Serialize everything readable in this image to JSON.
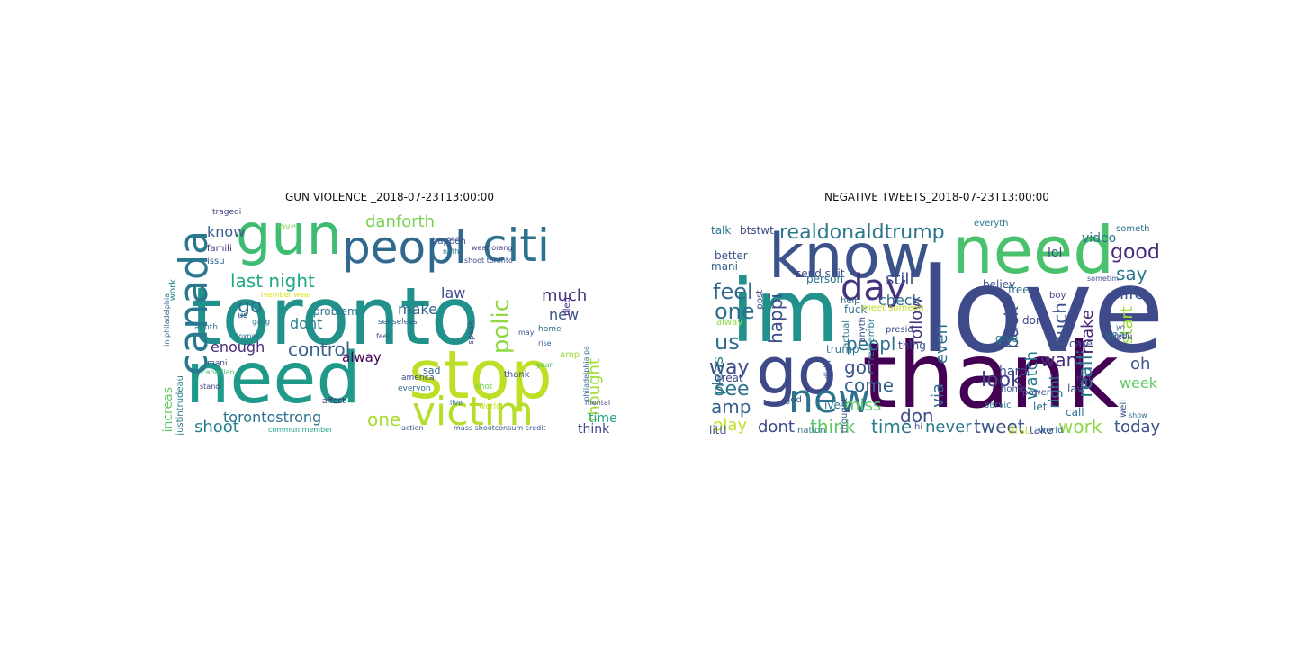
{
  "figure": {
    "panels": [
      {
        "title": "GUN VIOLENCE _2018-07-23T13:00:00",
        "words": [
          {
            "text": "toronto",
            "color": "#21918c"
          },
          {
            "text": "need",
            "color": "#1f9a8a"
          },
          {
            "text": "stop",
            "color": "#bddf26"
          },
          {
            "text": "peopl",
            "color": "#31688e"
          },
          {
            "text": "gun",
            "color": "#3fbc73"
          },
          {
            "text": "citi",
            "color": "#2c728e"
          },
          {
            "text": "victim",
            "color": "#b5de2b"
          },
          {
            "text": "canada",
            "color": "#2a788e"
          },
          {
            "text": "last night",
            "color": "#22a884"
          },
          {
            "text": "danforth",
            "color": "#7ad151"
          },
          {
            "text": "control",
            "color": "#355f8d"
          },
          {
            "text": "torontostrong",
            "color": "#2c728e"
          },
          {
            "text": "shoot",
            "color": "#25838e"
          },
          {
            "text": "one",
            "color": "#addc30"
          },
          {
            "text": "enough",
            "color": "#482878"
          },
          {
            "text": "much",
            "color": "#46337f"
          },
          {
            "text": "polic",
            "color": "#8fd744"
          },
          {
            "text": "thought",
            "color": "#a2da37"
          },
          {
            "text": "law",
            "color": "#3e4a89"
          },
          {
            "text": "make",
            "color": "#33638d"
          },
          {
            "text": "go",
            "color": "#2d708e"
          },
          {
            "text": "dont",
            "color": "#26828e"
          },
          {
            "text": "alway",
            "color": "#440154"
          },
          {
            "text": "know",
            "color": "#375a8c"
          },
          {
            "text": "increas",
            "color": "#5ec962"
          },
          {
            "text": "new",
            "color": "#3b528b"
          },
          {
            "text": "time",
            "color": "#20a386"
          },
          {
            "text": "think",
            "color": "#404688"
          },
          {
            "text": "famili",
            "color": "#472d7b"
          },
          {
            "text": "issu",
            "color": "#31688e"
          },
          {
            "text": "problem",
            "color": "#2a788e"
          },
          {
            "text": "happen",
            "color": "#3b528b"
          },
          {
            "text": "justintrudeau",
            "color": "#287c8e"
          },
          {
            "text": "tragedi",
            "color": "#414487"
          },
          {
            "text": "love",
            "color": "#7ad151"
          },
          {
            "text": "illeg",
            "color": "#472c7a"
          },
          {
            "text": "senseless",
            "color": "#355f8d"
          },
          {
            "text": "speak",
            "color": "#3e4989"
          },
          {
            "text": "sad",
            "color": "#31688e"
          },
          {
            "text": "amp",
            "color": "#a0da39"
          },
          {
            "text": "home",
            "color": "#2e6f8e"
          },
          {
            "text": "shot",
            "color": "#75d054"
          },
          {
            "text": "thank",
            "color": "#3b528b"
          },
          {
            "text": "us",
            "color": "#32648e"
          },
          {
            "text": "anoth",
            "color": "#2a788e"
          },
          {
            "text": "mani",
            "color": "#3f4788"
          },
          {
            "text": "work",
            "color": "#238a8d"
          },
          {
            "text": "wear orang",
            "color": "#453781"
          },
          {
            "text": "shoot toronto",
            "color": "#3e4a89"
          },
          {
            "text": "philadelphia pa",
            "color": "#2d708e"
          },
          {
            "text": "in philadelphia",
            "color": "#31688e"
          },
          {
            "text": "member wear",
            "color": "#dde318"
          },
          {
            "text": "commun member",
            "color": "#1fa088"
          },
          {
            "text": "mass shootconsum credit",
            "color": "#38588c"
          },
          {
            "text": "world",
            "color": "#c2df23"
          },
          {
            "text": "america",
            "color": "#3f4788"
          },
          {
            "text": "everyon",
            "color": "#2c728e"
          },
          {
            "text": "affect",
            "color": "#481f70"
          },
          {
            "text": "action",
            "color": "#3b528b"
          },
          {
            "text": "toxnes",
            "color": "#2d708e"
          },
          {
            "text": "gang",
            "color": "#2a788e"
          },
          {
            "text": "canadian",
            "color": "#4ac16d"
          },
          {
            "text": "rise",
            "color": "#34618d"
          },
          {
            "text": "year",
            "color": "#4ac16d"
          },
          {
            "text": "noth",
            "color": "#2a788e"
          },
          {
            "text": "end",
            "color": "#3e4a89"
          },
          {
            "text": "may",
            "color": "#3b528b"
          },
          {
            "text": "feel",
            "color": "#3b528b"
          },
          {
            "text": "live",
            "color": "#2c728e"
          },
          {
            "text": "mental",
            "color": "#3f4788"
          },
          {
            "text": "stand",
            "color": "#3e4a89"
          }
        ]
      },
      {
        "title": "NEGATIVE TWEETS_2018-07-23T13:00:00",
        "words": [
          {
            "text": "love",
            "color": "#3e4a89"
          },
          {
            "text": "thank",
            "color": "#440154"
          },
          {
            "text": "im",
            "color": "#21918c"
          },
          {
            "text": "know",
            "color": "#3b528b"
          },
          {
            "text": "need",
            "color": "#4ac16d"
          },
          {
            "text": "go",
            "color": "#3e4989"
          },
          {
            "text": "new",
            "color": "#2c728e"
          },
          {
            "text": "day",
            "color": "#46337f"
          },
          {
            "text": "realdonaldtrump",
            "color": "#2a788e"
          },
          {
            "text": "think",
            "color": "#5ec962"
          },
          {
            "text": "time",
            "color": "#2a788e"
          },
          {
            "text": "tweet",
            "color": "#3b528b"
          },
          {
            "text": "work",
            "color": "#8fd744"
          },
          {
            "text": "dont",
            "color": "#3e4a89"
          },
          {
            "text": "peopl",
            "color": "#2c728e"
          },
          {
            "text": "look",
            "color": "#414487"
          },
          {
            "text": "want",
            "color": "#472d7b"
          },
          {
            "text": "good",
            "color": "#482878"
          },
          {
            "text": "say",
            "color": "#2a788e"
          },
          {
            "text": "life",
            "color": "#3b528b"
          },
          {
            "text": "feel",
            "color": "#31688e"
          },
          {
            "text": "one",
            "color": "#2d708e"
          },
          {
            "text": "us",
            "color": "#2e6f8e"
          },
          {
            "text": "way",
            "color": "#3e4989"
          },
          {
            "text": "see",
            "color": "#2c728e"
          },
          {
            "text": "amp",
            "color": "#355f8d"
          },
          {
            "text": "play",
            "color": "#c2df23"
          },
          {
            "text": "follow",
            "color": "#453781"
          },
          {
            "text": "come",
            "color": "#33638d"
          },
          {
            "text": "got",
            "color": "#3b528b"
          },
          {
            "text": "miss",
            "color": "#5ec962"
          },
          {
            "text": "don",
            "color": "#3e4a89"
          },
          {
            "text": "never",
            "color": "#2a788e"
          },
          {
            "text": "still",
            "color": "#3e4989"
          },
          {
            "text": "check",
            "color": "#31688e"
          },
          {
            "text": "watch",
            "color": "#287c8e"
          },
          {
            "text": "back",
            "color": "#3b528b"
          },
          {
            "text": "even",
            "color": "#2e6f8e"
          },
          {
            "text": "via",
            "color": "#32648e"
          },
          {
            "text": "week",
            "color": "#5ec962"
          },
          {
            "text": "today",
            "color": "#3b528b"
          },
          {
            "text": "start",
            "color": "#a2da37"
          },
          {
            "text": "oh",
            "color": "#3b528b"
          },
          {
            "text": "realli",
            "color": "#2a788e"
          },
          {
            "text": "right",
            "color": "#2c728e"
          },
          {
            "text": "make",
            "color": "#482878"
          },
          {
            "text": "much",
            "color": "#3b528b"
          },
          {
            "text": "pleas",
            "color": "#2a788e"
          },
          {
            "text": "happi",
            "color": "#3e4a89"
          },
          {
            "text": "lol",
            "color": "#3e4989"
          },
          {
            "text": "video",
            "color": "#2c728e"
          },
          {
            "text": "better",
            "color": "#3b528b"
          },
          {
            "text": "mani",
            "color": "#34618d"
          },
          {
            "text": "great",
            "color": "#3e4a89"
          },
          {
            "text": "alway",
            "color": "#8fd744"
          },
          {
            "text": "send shit",
            "color": "#3e4989"
          },
          {
            "text": "fuck",
            "color": "#2c728e"
          },
          {
            "text": "trump",
            "color": "#2a788e"
          },
          {
            "text": "thing",
            "color": "#3b528b"
          },
          {
            "text": "let",
            "color": "#2e6f8e"
          },
          {
            "text": "call",
            "color": "#2d708e"
          },
          {
            "text": "take",
            "color": "#3e4a89"
          },
          {
            "text": "world",
            "color": "#33638d"
          },
          {
            "text": "hard",
            "color": "#3b528b"
          },
          {
            "text": "give",
            "color": "#2a788e"
          },
          {
            "text": "done",
            "color": "#3e4989"
          },
          {
            "text": "year",
            "color": "#2c728e"
          },
          {
            "text": "care",
            "color": "#3b528b"
          },
          {
            "text": "talk",
            "color": "#2a788e"
          },
          {
            "text": "btstwt",
            "color": "#3e4a89"
          },
          {
            "text": "person",
            "color": "#2c728e"
          },
          {
            "text": "help",
            "color": "#31688e"
          },
          {
            "text": "post",
            "color": "#3e4989"
          },
          {
            "text": "littl",
            "color": "#3b528b"
          },
          {
            "text": "first",
            "color": "#c2df23"
          },
          {
            "text": "god",
            "color": "#3b528b"
          },
          {
            "text": "ive",
            "color": "#2a788e"
          },
          {
            "text": "didn",
            "color": "#3e4a89"
          },
          {
            "text": "actual",
            "color": "#2c728e"
          },
          {
            "text": "thought",
            "color": "#3b528b"
          },
          {
            "text": "anyth",
            "color": "#3e4989"
          },
          {
            "text": "remembr",
            "color": "#2a788e"
          },
          {
            "text": "presid",
            "color": "#3e4a89"
          },
          {
            "text": "believ",
            "color": "#3b528b"
          },
          {
            "text": "free",
            "color": "#2c728e"
          },
          {
            "text": "boy",
            "color": "#3e4989"
          },
          {
            "text": "law",
            "color": "#3b528b"
          },
          {
            "text": "servic",
            "color": "#2a788e"
          },
          {
            "text": "issu",
            "color": "#3e4a89"
          },
          {
            "text": "well",
            "color": "#3b528b"
          },
          {
            "text": "jesu",
            "color": "#3e4989"
          },
          {
            "text": "someth",
            "color": "#2c728e"
          },
          {
            "text": "sometim",
            "color": "#3b528b"
          },
          {
            "text": "everyth",
            "color": "#2a788e"
          },
          {
            "text": "meet someon",
            "color": "#c2df23"
          },
          {
            "text": "power",
            "color": "#3e4a89"
          },
          {
            "text": "home",
            "color": "#3b528b"
          },
          {
            "text": "nation",
            "color": "#2a788e"
          },
          {
            "text": "hi",
            "color": "#3e4989"
          },
          {
            "text": "yo",
            "color": "#3b528b"
          },
          {
            "text": "show",
            "color": "#2c728e"
          },
          {
            "text": "children",
            "color": "#3e4a89"
          }
        ]
      }
    ]
  }
}
